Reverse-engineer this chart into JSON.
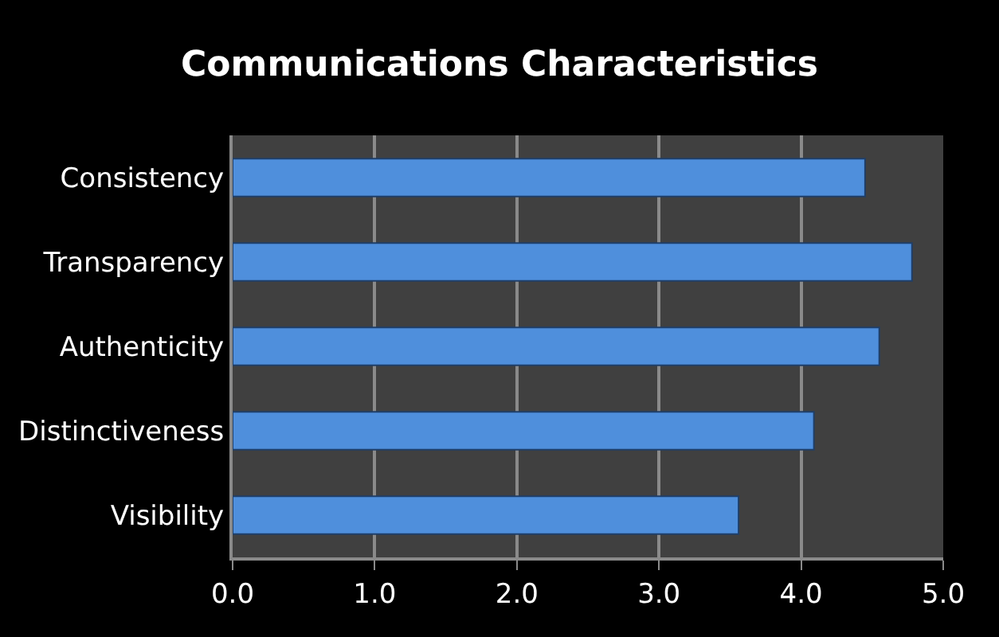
{
  "chart_data": {
    "type": "bar",
    "orientation": "horizontal",
    "title": "Communications Characteristics",
    "categories": [
      "Consistency",
      "Transparency",
      "Authenticity",
      "Distinctiveness",
      "Visibility"
    ],
    "values": [
      4.45,
      4.78,
      4.55,
      4.09,
      3.56
    ],
    "color": "#4f8fdc",
    "xlim": [
      0,
      5
    ],
    "xticks": [
      {
        "value": 0,
        "label": "0.0"
      },
      {
        "value": 1,
        "label": "1.0"
      },
      {
        "value": 2,
        "label": "2.0"
      },
      {
        "value": 3,
        "label": "3.0"
      },
      {
        "value": 4,
        "label": "4.0"
      },
      {
        "value": 5,
        "label": "5.0"
      }
    ],
    "grid": "x"
  }
}
